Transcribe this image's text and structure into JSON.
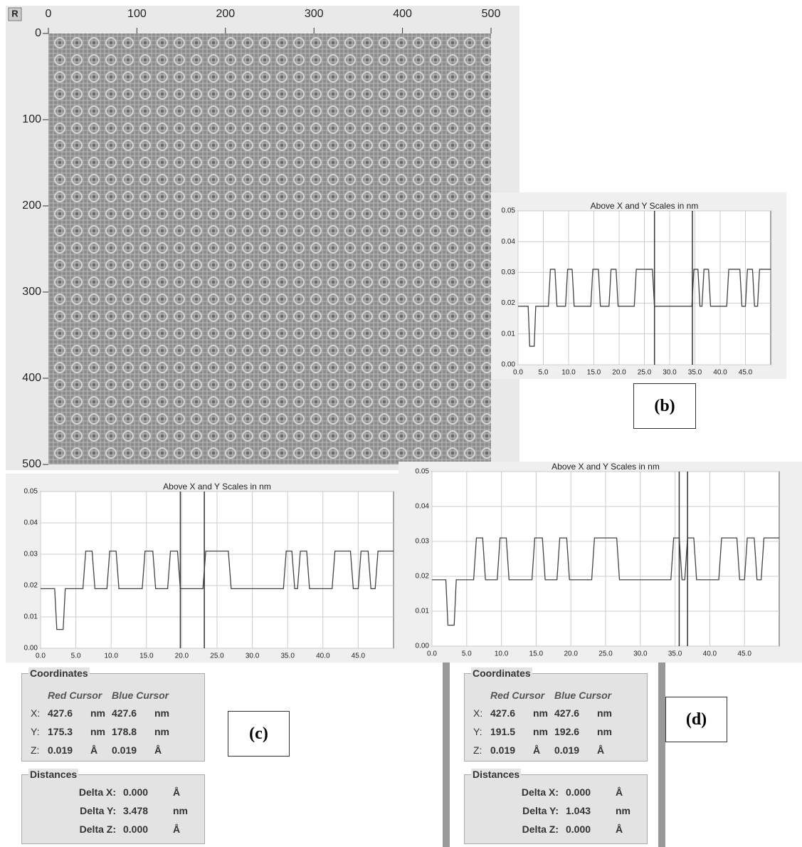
{
  "chart_data": [
    {
      "type": "image",
      "corner_label": "R",
      "xlim": [
        0,
        500
      ],
      "ylim": [
        0,
        500
      ],
      "y_axis_inverted": true,
      "xticks": [
        0,
        100,
        200,
        300,
        400,
        500
      ],
      "yticks": [
        0,
        100,
        200,
        300,
        400,
        500
      ]
    },
    {
      "type": "line",
      "title": "Above X and Y Scales in nm",
      "color": "#444444",
      "grid": true,
      "xlim": [
        0,
        50
      ],
      "ylim": [
        0,
        0.05
      ],
      "xticks": [
        {
          "value": 0,
          "label": "0.0"
        },
        {
          "value": 5,
          "label": "5.0"
        },
        {
          "value": 10,
          "label": "10.0"
        },
        {
          "value": 15,
          "label": "15.0"
        },
        {
          "value": 20,
          "label": "20.0"
        },
        {
          "value": 25,
          "label": "25.0"
        },
        {
          "value": 30,
          "label": "30.0"
        },
        {
          "value": 35,
          "label": "35.0"
        },
        {
          "value": 40,
          "label": "40.0"
        },
        {
          "value": 45,
          "label": "45.0"
        }
      ],
      "yticks": [
        {
          "value": 0,
          "label": "0.00"
        },
        {
          "value": 0.01,
          "label": "0.01"
        },
        {
          "value": 0.02,
          "label": "0.02"
        },
        {
          "value": 0.03,
          "label": "0.03"
        },
        {
          "value": 0.04,
          "label": "0.04"
        },
        {
          "value": 0.05,
          "label": "0.05"
        }
      ],
      "cursors": [
        27,
        34.5
      ],
      "x": [
        0,
        2.0,
        2.3,
        3.2,
        3.5,
        6.0,
        6.4,
        7.3,
        7.7,
        9.4,
        9.8,
        10.7,
        11.1,
        14.4,
        14.8,
        15.9,
        16.3,
        18.0,
        18.4,
        19.4,
        19.8,
        23.0,
        23.4,
        26.6,
        27.0,
        34.4,
        34.8,
        35.6,
        36.0,
        36.4,
        36.8,
        37.7,
        38.1,
        41.3,
        41.7,
        43.9,
        44.3,
        45.0,
        45.4,
        46.4,
        46.8,
        47.4,
        47.8,
        50.0
      ],
      "values": [
        0.019,
        0.019,
        0.006,
        0.006,
        0.019,
        0.019,
        0.031,
        0.031,
        0.019,
        0.019,
        0.031,
        0.031,
        0.019,
        0.019,
        0.031,
        0.031,
        0.019,
        0.019,
        0.031,
        0.031,
        0.019,
        0.019,
        0.031,
        0.031,
        0.019,
        0.019,
        0.031,
        0.031,
        0.019,
        0.019,
        0.031,
        0.031,
        0.019,
        0.019,
        0.031,
        0.031,
        0.019,
        0.019,
        0.031,
        0.031,
        0.019,
        0.019,
        0.031,
        0.031
      ]
    },
    {
      "type": "line",
      "title": "Above X and Y Scales in nm",
      "color": "#444444",
      "grid": true,
      "xlim": [
        0,
        50
      ],
      "ylim": [
        0,
        0.05
      ],
      "xticks": [
        {
          "value": 0,
          "label": "0.0"
        },
        {
          "value": 5,
          "label": "5.0"
        },
        {
          "value": 10,
          "label": "10.0"
        },
        {
          "value": 15,
          "label": "15.0"
        },
        {
          "value": 20,
          "label": "20.0"
        },
        {
          "value": 25,
          "label": "25.0"
        },
        {
          "value": 30,
          "label": "30.0"
        },
        {
          "value": 35,
          "label": "35.0"
        },
        {
          "value": 40,
          "label": "40.0"
        },
        {
          "value": 45,
          "label": "45.0"
        }
      ],
      "yticks": [
        {
          "value": 0,
          "label": "0.00"
        },
        {
          "value": 0.01,
          "label": "0.01"
        },
        {
          "value": 0.02,
          "label": "0.02"
        },
        {
          "value": 0.03,
          "label": "0.03"
        },
        {
          "value": 0.04,
          "label": "0.04"
        },
        {
          "value": 0.05,
          "label": "0.05"
        }
      ],
      "cursors": [
        19.8,
        23.2
      ],
      "x": [
        0,
        2.0,
        2.3,
        3.2,
        3.5,
        6.0,
        6.4,
        7.3,
        7.7,
        9.4,
        9.8,
        10.7,
        11.1,
        14.4,
        14.8,
        15.9,
        16.3,
        18.0,
        18.4,
        19.4,
        19.8,
        23.0,
        23.4,
        26.6,
        27.0,
        34.4,
        34.8,
        35.6,
        36.0,
        36.4,
        36.8,
        37.7,
        38.1,
        41.3,
        41.7,
        43.9,
        44.3,
        45.0,
        45.4,
        46.4,
        46.8,
        47.4,
        47.8,
        50.0
      ],
      "values": [
        0.019,
        0.019,
        0.006,
        0.006,
        0.019,
        0.019,
        0.031,
        0.031,
        0.019,
        0.019,
        0.031,
        0.031,
        0.019,
        0.019,
        0.031,
        0.031,
        0.019,
        0.019,
        0.031,
        0.031,
        0.019,
        0.019,
        0.031,
        0.031,
        0.019,
        0.019,
        0.031,
        0.031,
        0.019,
        0.019,
        0.031,
        0.031,
        0.019,
        0.019,
        0.031,
        0.031,
        0.019,
        0.019,
        0.031,
        0.031,
        0.019,
        0.019,
        0.031,
        0.031
      ]
    },
    {
      "type": "line",
      "title": "Above X and Y Scales in nm",
      "color": "#444444",
      "grid": true,
      "xlim": [
        0,
        50
      ],
      "ylim": [
        0,
        0.05
      ],
      "xticks": [
        {
          "value": 0,
          "label": "0.0"
        },
        {
          "value": 5,
          "label": "5.0"
        },
        {
          "value": 10,
          "label": "10.0"
        },
        {
          "value": 15,
          "label": "15.0"
        },
        {
          "value": 20,
          "label": "20.0"
        },
        {
          "value": 25,
          "label": "25.0"
        },
        {
          "value": 30,
          "label": "30.0"
        },
        {
          "value": 35,
          "label": "35.0"
        },
        {
          "value": 40,
          "label": "40.0"
        },
        {
          "value": 45,
          "label": "45.0"
        }
      ],
      "yticks": [
        {
          "value": 0,
          "label": "0.00"
        },
        {
          "value": 0.01,
          "label": "0.01"
        },
        {
          "value": 0.02,
          "label": "0.02"
        },
        {
          "value": 0.03,
          "label": "0.03"
        },
        {
          "value": 0.04,
          "label": "0.04"
        },
        {
          "value": 0.05,
          "label": "0.05"
        }
      ],
      "cursors": [
        35.6,
        36.8
      ],
      "x": [
        0,
        2.0,
        2.3,
        3.2,
        3.5,
        6.0,
        6.4,
        7.3,
        7.7,
        9.4,
        9.8,
        10.7,
        11.1,
        14.4,
        14.8,
        15.9,
        16.3,
        18.0,
        18.4,
        19.4,
        19.8,
        23.0,
        23.4,
        26.6,
        27.0,
        34.4,
        34.8,
        35.6,
        36.0,
        36.4,
        36.8,
        37.7,
        38.1,
        41.3,
        41.7,
        43.9,
        44.3,
        45.0,
        45.4,
        46.4,
        46.8,
        47.4,
        47.8,
        50.0
      ],
      "values": [
        0.019,
        0.019,
        0.006,
        0.006,
        0.019,
        0.019,
        0.031,
        0.031,
        0.019,
        0.019,
        0.031,
        0.031,
        0.019,
        0.019,
        0.031,
        0.031,
        0.019,
        0.019,
        0.031,
        0.031,
        0.019,
        0.019,
        0.031,
        0.031,
        0.019,
        0.019,
        0.031,
        0.031,
        0.019,
        0.019,
        0.031,
        0.031,
        0.019,
        0.019,
        0.031,
        0.031,
        0.019,
        0.019,
        0.031,
        0.031,
        0.019,
        0.019,
        0.031,
        0.031
      ]
    }
  ],
  "figure_labels": [
    "(b)",
    "(c)",
    "(d)"
  ],
  "panels": [
    {
      "coordinates": {
        "title": "Coordinates",
        "headers": [
          "Red Cursor",
          "Blue Cursor"
        ],
        "rows": [
          [
            "X:",
            "427.6",
            "nm",
            "427.6",
            "nm"
          ],
          [
            "Y:",
            "175.3",
            "nm",
            "178.8",
            "nm"
          ],
          [
            "Z:",
            "0.019",
            "Å",
            "0.019",
            "Å"
          ]
        ]
      },
      "distances": {
        "title": "Distances",
        "rows": [
          [
            "Delta X:",
            "0.000",
            "Å"
          ],
          [
            "Delta Y:",
            "3.478",
            "nm"
          ],
          [
            "Delta Z:",
            "0.000",
            "Å"
          ]
        ]
      }
    },
    {
      "coordinates": {
        "title": "Coordinates",
        "headers": [
          "Red Cursor",
          "Blue Cursor"
        ],
        "rows": [
          [
            "X:",
            "427.6",
            "nm",
            "427.6",
            "nm"
          ],
          [
            "Y:",
            "191.5",
            "nm",
            "192.6",
            "nm"
          ],
          [
            "Z:",
            "0.019",
            "Å",
            "0.019",
            "Å"
          ]
        ]
      },
      "distances": {
        "title": "Distances",
        "rows": [
          [
            "Delta X:",
            "0.000",
            "Å"
          ],
          [
            "Delta Y:",
            "1.043",
            "nm"
          ],
          [
            "Delta Z:",
            "0.000",
            "Å"
          ]
        ]
      }
    }
  ]
}
